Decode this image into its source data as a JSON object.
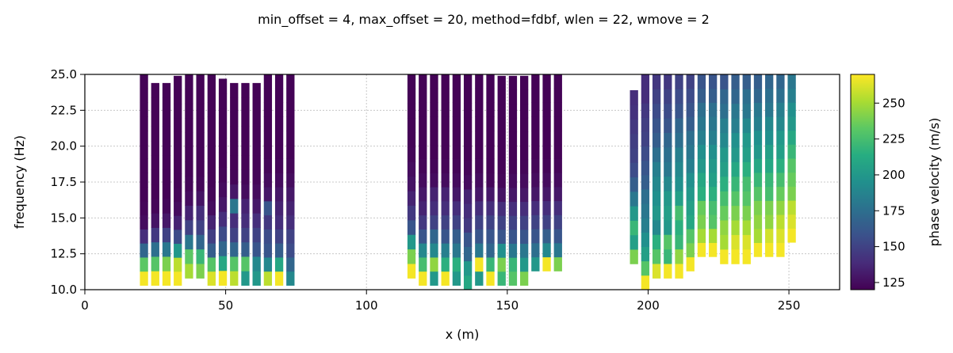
{
  "chart_data": {
    "type": "heatmap",
    "title": "min_offset = 4, max_offset = 20, method=fdbf, wlen = 22, wmove = 2",
    "xlabel": "x (m)",
    "ylabel": "frequency (Hz)",
    "xlim": [
      0,
      268
    ],
    "ylim": [
      10,
      25
    ],
    "xticks": [
      "0",
      "50",
      "100",
      "150",
      "200",
      "250"
    ],
    "yticks": [
      "10.0",
      "12.5",
      "15.0",
      "17.5",
      "20.0",
      "22.5",
      "25.0"
    ],
    "grid": true,
    "colorbar": {
      "label": "phase velocity (m/s)",
      "colormap": "viridis",
      "range": [
        120,
        270
      ],
      "ticks": [
        "125",
        "150",
        "175",
        "200",
        "225",
        "250"
      ]
    },
    "columns": [
      {
        "x": 21,
        "fmin": 10.3,
        "fmax": 25.0,
        "vel": [
          268,
          232,
          170,
          140,
          125,
          122,
          121,
          121,
          121,
          121,
          121,
          121,
          121,
          121,
          121
        ]
      },
      {
        "x": 25,
        "fmin": 10.3,
        "fmax": 24.4,
        "vel": [
          268,
          230,
          175,
          145,
          128,
          122,
          121,
          121,
          121,
          121,
          121,
          121,
          121,
          121
        ]
      },
      {
        "x": 29,
        "fmin": 10.3,
        "fmax": 24.4,
        "vel": [
          268,
          240,
          180,
          150,
          130,
          123,
          121,
          121,
          121,
          121,
          121,
          121,
          121,
          121
        ]
      },
      {
        "x": 33,
        "fmin": 10.3,
        "fmax": 24.9,
        "vel": [
          268,
          255,
          200,
          155,
          135,
          125,
          122,
          121,
          121,
          121,
          121,
          121,
          121,
          121,
          121
        ]
      },
      {
        "x": 37,
        "fmin": 10.8,
        "fmax": 25.0,
        "vel": [
          250,
          232,
          180,
          150,
          135,
          125,
          122,
          121,
          121,
          121,
          121,
          121,
          121,
          121
        ]
      },
      {
        "x": 41,
        "fmin": 10.8,
        "fmax": 25.0,
        "vel": [
          240,
          220,
          170,
          150,
          140,
          128,
          122,
          121,
          121,
          121,
          121,
          121,
          121,
          121
        ]
      },
      {
        "x": 45,
        "fmin": 10.3,
        "fmax": 25.0,
        "vel": [
          262,
          230,
          165,
          148,
          135,
          125,
          122,
          121,
          121,
          121,
          121,
          121,
          121,
          121,
          121
        ]
      },
      {
        "x": 49,
        "fmin": 10.3,
        "fmax": 24.7,
        "vel": [
          268,
          210,
          170,
          155,
          140,
          130,
          125,
          122,
          121,
          121,
          121,
          121,
          121,
          121
        ]
      },
      {
        "x": 53,
        "fmin": 10.3,
        "fmax": 24.4,
        "vel": [
          255,
          230,
          170,
          150,
          140,
          180,
          130,
          122,
          121,
          121,
          121,
          121,
          121,
          121
        ]
      },
      {
        "x": 57,
        "fmin": 10.3,
        "fmax": 24.4,
        "vel": [
          200,
          230,
          165,
          150,
          140,
          135,
          125,
          122,
          121,
          121,
          121,
          121,
          121,
          121
        ]
      },
      {
        "x": 61,
        "fmin": 10.3,
        "fmax": 24.4,
        "vel": [
          200,
          190,
          160,
          150,
          140,
          130,
          125,
          122,
          121,
          121,
          121,
          121,
          121,
          121
        ]
      },
      {
        "x": 65,
        "fmin": 10.3,
        "fmax": 25.0,
        "vel": [
          255,
          190,
          160,
          155,
          145,
          160,
          130,
          125,
          122,
          121,
          121,
          121,
          121,
          121,
          121
        ]
      },
      {
        "x": 69,
        "fmin": 10.3,
        "fmax": 25.0,
        "vel": [
          268,
          210,
          165,
          150,
          140,
          135,
          130,
          125,
          122,
          121,
          121,
          121,
          121,
          121,
          121
        ]
      },
      {
        "x": 73,
        "fmin": 10.3,
        "fmax": 25.0,
        "vel": [
          190,
          170,
          155,
          150,
          140,
          135,
          130,
          125,
          122,
          121,
          121,
          121,
          121,
          121,
          121
        ]
      },
      {
        "x": 116,
        "fmin": 10.8,
        "fmax": 25.0,
        "vel": [
          268,
          240,
          200,
          160,
          145,
          135,
          128,
          125,
          122,
          121,
          121,
          121,
          121,
          121
        ]
      },
      {
        "x": 120,
        "fmin": 10.3,
        "fmax": 25.0,
        "vel": [
          268,
          225,
          190,
          160,
          145,
          135,
          130,
          125,
          122,
          121,
          121,
          121,
          121,
          121,
          121
        ]
      },
      {
        "x": 124,
        "fmin": 10.3,
        "fmax": 25.0,
        "vel": [
          200,
          245,
          190,
          170,
          150,
          140,
          135,
          125,
          122,
          121,
          121,
          121,
          121,
          121,
          121
        ]
      },
      {
        "x": 128,
        "fmin": 10.3,
        "fmax": 25.0,
        "vel": [
          268,
          215,
          185,
          160,
          150,
          140,
          135,
          125,
          122,
          121,
          121,
          121,
          121,
          121,
          121
        ]
      },
      {
        "x": 132,
        "fmin": 10.3,
        "fmax": 25.0,
        "vel": [
          200,
          215,
          180,
          165,
          150,
          140,
          130,
          125,
          122,
          121,
          121,
          121,
          121,
          121,
          121
        ]
      },
      {
        "x": 136,
        "fmin": 10.0,
        "fmax": 25.0,
        "vel": [
          210,
          200,
          170,
          160,
          145,
          140,
          135,
          125,
          122,
          121,
          121,
          121,
          121,
          121,
          121
        ]
      },
      {
        "x": 140,
        "fmin": 10.3,
        "fmax": 25.0,
        "vel": [
          200,
          268,
          180,
          160,
          150,
          140,
          130,
          125,
          122,
          121,
          121,
          121,
          121,
          121,
          121
        ]
      },
      {
        "x": 144,
        "fmin": 10.3,
        "fmax": 25.0,
        "vel": [
          268,
          220,
          170,
          160,
          150,
          140,
          130,
          122,
          121,
          121,
          121,
          121,
          121,
          121,
          121
        ]
      },
      {
        "x": 148,
        "fmin": 10.3,
        "fmax": 24.9,
        "vel": [
          220,
          240,
          195,
          160,
          150,
          140,
          128,
          122,
          121,
          121,
          121,
          121,
          121,
          121,
          121
        ]
      },
      {
        "x": 152,
        "fmin": 10.3,
        "fmax": 24.9,
        "vel": [
          230,
          220,
          180,
          160,
          150,
          140,
          130,
          125,
          122,
          121,
          121,
          121,
          121,
          121,
          121
        ]
      },
      {
        "x": 156,
        "fmin": 10.3,
        "fmax": 24.9,
        "vel": [
          240,
          200,
          180,
          160,
          150,
          140,
          130,
          125,
          122,
          121,
          121,
          121,
          121,
          121,
          121
        ]
      },
      {
        "x": 160,
        "fmin": 11.3,
        "fmax": 25.0,
        "vel": [
          200,
          175,
          160,
          150,
          140,
          130,
          125,
          122,
          121,
          121,
          121,
          121,
          121,
          121
        ]
      },
      {
        "x": 164,
        "fmin": 11.3,
        "fmax": 25.0,
        "vel": [
          268,
          190,
          165,
          150,
          140,
          130,
          125,
          122,
          121,
          121,
          121,
          121,
          121,
          121
        ]
      },
      {
        "x": 168,
        "fmin": 11.3,
        "fmax": 25.0,
        "vel": [
          240,
          180,
          160,
          150,
          140,
          130,
          125,
          122,
          121,
          121,
          121,
          121,
          121,
          121
        ]
      },
      {
        "x": 195,
        "fmin": 11.8,
        "fmax": 23.9,
        "vel": [
          240,
          205,
          220,
          200,
          180,
          165,
          155,
          150,
          148,
          145,
          142,
          140
        ]
      },
      {
        "x": 199,
        "fmin": 10.0,
        "fmax": 25.0,
        "vel": [
          268,
          230,
          205,
          195,
          185,
          180,
          175,
          165,
          160,
          155,
          150,
          148,
          145,
          140,
          140
        ]
      },
      {
        "x": 203,
        "fmin": 10.8,
        "fmax": 25.0,
        "vel": [
          262,
          230,
          215,
          190,
          200,
          195,
          190,
          185,
          175,
          165,
          160,
          155,
          150,
          145
        ]
      },
      {
        "x": 207,
        "fmin": 10.8,
        "fmax": 25.0,
        "vel": [
          268,
          220,
          230,
          200,
          205,
          200,
          190,
          180,
          175,
          170,
          160,
          155,
          150,
          145
        ]
      },
      {
        "x": 211,
        "fmin": 10.8,
        "fmax": 25.0,
        "vel": [
          268,
          245,
          220,
          215,
          225,
          205,
          195,
          190,
          185,
          175,
          170,
          160,
          155,
          150
        ]
      },
      {
        "x": 215,
        "fmin": 11.3,
        "fmax": 25.0,
        "vel": [
          268,
          240,
          230,
          210,
          205,
          200,
          195,
          185,
          180,
          175,
          165,
          160,
          155,
          150
        ]
      },
      {
        "x": 219,
        "fmin": 12.3,
        "fmax": 25.0,
        "vel": [
          268,
          250,
          240,
          235,
          215,
          210,
          200,
          195,
          185,
          180,
          175,
          165,
          160
        ]
      },
      {
        "x": 223,
        "fmin": 12.3,
        "fmax": 25.0,
        "vel": [
          268,
          250,
          230,
          225,
          215,
          205,
          200,
          195,
          185,
          180,
          175,
          165,
          160
        ]
      },
      {
        "x": 227,
        "fmin": 11.8,
        "fmax": 25.0,
        "vel": [
          268,
          250,
          245,
          235,
          225,
          215,
          205,
          200,
          190,
          185,
          175,
          170,
          160
        ]
      },
      {
        "x": 231,
        "fmin": 11.8,
        "fmax": 25.0,
        "vel": [
          268,
          262,
          250,
          240,
          230,
          220,
          210,
          200,
          195,
          185,
          180,
          170,
          165
        ]
      },
      {
        "x": 235,
        "fmin": 11.8,
        "fmax": 25.0,
        "vel": [
          268,
          262,
          250,
          240,
          230,
          225,
          215,
          205,
          200,
          190,
          180,
          175,
          165
        ]
      },
      {
        "x": 239,
        "fmin": 12.3,
        "fmax": 25.0,
        "vel": [
          268,
          250,
          245,
          240,
          230,
          220,
          210,
          200,
          195,
          185,
          180,
          170,
          165
        ]
      },
      {
        "x": 243,
        "fmin": 12.3,
        "fmax": 25.0,
        "vel": [
          268,
          260,
          245,
          240,
          225,
          220,
          210,
          205,
          195,
          190,
          180,
          175,
          170
        ]
      },
      {
        "x": 247,
        "fmin": 12.3,
        "fmax": 25.0,
        "vel": [
          268,
          262,
          255,
          245,
          235,
          225,
          215,
          205,
          200,
          190,
          185,
          175,
          170
        ]
      },
      {
        "x": 251,
        "fmin": 13.3,
        "fmax": 25.0,
        "vel": [
          268,
          262,
          255,
          240,
          235,
          230,
          220,
          210,
          200,
          195,
          185,
          180
        ]
      }
    ]
  }
}
